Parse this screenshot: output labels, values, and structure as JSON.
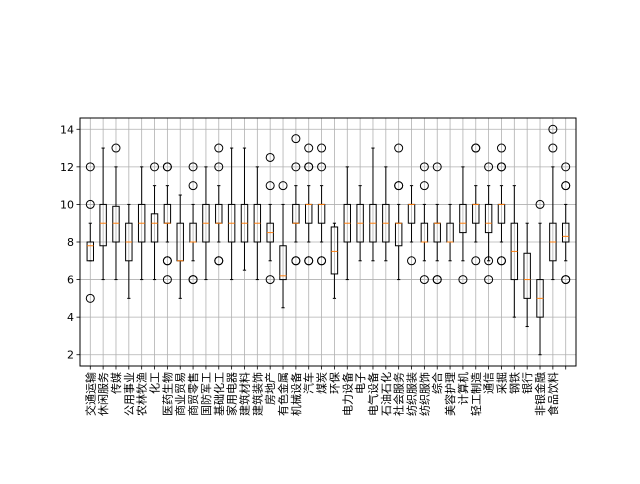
{
  "chart_data": {
    "type": "box",
    "title": "",
    "xlabel": "",
    "ylabel": "",
    "ylim": [
      1.4,
      14.6
    ],
    "yticks": [
      2,
      4,
      6,
      8,
      10,
      12,
      14
    ],
    "grid": true,
    "colors": {
      "box": "#000000",
      "median": "#ff7f0e",
      "grid": "#b0b0b0",
      "background": "#ffffff"
    },
    "boxes": [
      {
        "label": "交通运输",
        "whislo": 7,
        "q1": 7,
        "med": 7.8,
        "q3": 8,
        "whishi": 9,
        "fliers": [
          5,
          10,
          12
        ]
      },
      {
        "label": "休闲服务",
        "whislo": 6,
        "q1": 7.8,
        "med": 9,
        "q3": 10,
        "whishi": 13,
        "fliers": []
      },
      {
        "label": "传媒",
        "whislo": 6,
        "q1": 8,
        "med": 9,
        "q3": 9.9,
        "whishi": 12,
        "fliers": [
          13
        ]
      },
      {
        "label": "公用事业",
        "whislo": 5,
        "q1": 7,
        "med": 8,
        "q3": 9,
        "whishi": 10,
        "fliers": []
      },
      {
        "label": "农林牧渔",
        "whislo": 6,
        "q1": 8,
        "med": 9,
        "q3": 10,
        "whishi": 12,
        "fliers": []
      },
      {
        "label": "化工",
        "whislo": 6,
        "q1": 8,
        "med": 9,
        "q3": 9.5,
        "whishi": 11,
        "fliers": [
          12
        ]
      },
      {
        "label": "医药生物",
        "whislo": 8,
        "q1": 9,
        "med": 9,
        "q3": 10,
        "whishi": 11,
        "fliers": [
          6,
          7,
          7,
          12,
          12
        ]
      },
      {
        "label": "商业贸易",
        "whislo": 5,
        "q1": 7,
        "med": 7,
        "q3": 9,
        "whishi": 10.5,
        "fliers": []
      },
      {
        "label": "商贸零售",
        "whislo": 7,
        "q1": 8,
        "med": 8,
        "q3": 9,
        "whishi": 10,
        "fliers": [
          6,
          6,
          11,
          12
        ]
      },
      {
        "label": "国防军工",
        "whislo": 6,
        "q1": 8,
        "med": 9,
        "q3": 10,
        "whishi": 12,
        "fliers": []
      },
      {
        "label": "基础化工",
        "whislo": 8,
        "q1": 9,
        "med": 9,
        "q3": 10,
        "whishi": 11,
        "fliers": [
          7,
          7,
          12,
          13
        ]
      },
      {
        "label": "家用电器",
        "whislo": 6,
        "q1": 8,
        "med": 9,
        "q3": 10,
        "whishi": 13,
        "fliers": []
      },
      {
        "label": "建筑材料",
        "whislo": 6.5,
        "q1": 8,
        "med": 9,
        "q3": 10,
        "whishi": 13,
        "fliers": []
      },
      {
        "label": "建筑装饰",
        "whislo": 6,
        "q1": 8,
        "med": 9,
        "q3": 10,
        "whishi": 12,
        "fliers": []
      },
      {
        "label": "房地产",
        "whislo": 7,
        "q1": 8,
        "med": 8.5,
        "q3": 9,
        "whishi": 10,
        "fliers": [
          6,
          11,
          12.5
        ]
      },
      {
        "label": "有色金属",
        "whislo": 4.5,
        "q1": 6,
        "med": 6.2,
        "q3": 7.8,
        "whishi": 10,
        "fliers": [
          11
        ]
      },
      {
        "label": "机械设备",
        "whislo": 8,
        "q1": 9,
        "med": 9,
        "q3": 10,
        "whishi": 11,
        "fliers": [
          7,
          7,
          12,
          13.5
        ]
      },
      {
        "label": "汽车",
        "whislo": 8,
        "q1": 9,
        "med": 10,
        "q3": 10,
        "whishi": 11,
        "fliers": [
          7,
          7,
          12,
          12,
          13
        ]
      },
      {
        "label": "煤炭",
        "whislo": 8,
        "q1": 9,
        "med": 10,
        "q3": 10,
        "whishi": 11,
        "fliers": [
          7,
          7,
          12,
          13
        ]
      },
      {
        "label": "环保",
        "whislo": 5,
        "q1": 6.3,
        "med": 7.5,
        "q3": 8.8,
        "whishi": 9,
        "fliers": []
      },
      {
        "label": "电力设备",
        "whislo": 6,
        "q1": 8,
        "med": 9,
        "q3": 10,
        "whishi": 12,
        "fliers": []
      },
      {
        "label": "电子",
        "whislo": 7,
        "q1": 8,
        "med": 9,
        "q3": 10,
        "whishi": 11,
        "fliers": []
      },
      {
        "label": "电气设备",
        "whislo": 7,
        "q1": 8,
        "med": 9,
        "q3": 10,
        "whishi": 13,
        "fliers": []
      },
      {
        "label": "石油石化",
        "whislo": 7,
        "q1": 8,
        "med": 9,
        "q3": 10,
        "whishi": 12,
        "fliers": []
      },
      {
        "label": "社会服务",
        "whislo": 6,
        "q1": 7.8,
        "med": 9,
        "q3": 9,
        "whishi": 10,
        "fliers": [
          11,
          11,
          13
        ]
      },
      {
        "label": "纺织服装",
        "whislo": 8,
        "q1": 9,
        "med": 10,
        "q3": 10,
        "whishi": 11,
        "fliers": [
          7
        ]
      },
      {
        "label": "纺织服饰",
        "whislo": 7,
        "q1": 8,
        "med": 8,
        "q3": 9,
        "whishi": 10,
        "fliers": [
          6,
          11,
          12
        ]
      },
      {
        "label": "综合",
        "whislo": 7,
        "q1": 8,
        "med": 9,
        "q3": 9,
        "whishi": 10,
        "fliers": [
          6,
          6,
          12
        ]
      },
      {
        "label": "美容护理",
        "whislo": 7,
        "q1": 8,
        "med": 8,
        "q3": 9,
        "whishi": 10,
        "fliers": []
      },
      {
        "label": "计算机",
        "whislo": 7,
        "q1": 8.5,
        "med": 9,
        "q3": 10,
        "whishi": 12,
        "fliers": [
          6
        ]
      },
      {
        "label": "轻工制造",
        "whislo": 8,
        "q1": 9,
        "med": 10,
        "q3": 10,
        "whishi": 11,
        "fliers": [
          7,
          13,
          13
        ]
      },
      {
        "label": "通信",
        "whislo": 7,
        "q1": 8.5,
        "med": 9,
        "q3": 10,
        "whishi": 11,
        "fliers": [
          6,
          7,
          12
        ]
      },
      {
        "label": "采掘",
        "whislo": 8,
        "q1": 9,
        "med": 10,
        "q3": 10,
        "whishi": 11,
        "fliers": [
          7,
          7,
          12,
          12,
          13
        ]
      },
      {
        "label": "钢铁",
        "whislo": 4,
        "q1": 6,
        "med": 7.5,
        "q3": 9,
        "whishi": 11,
        "fliers": []
      },
      {
        "label": "银行",
        "whislo": 3.5,
        "q1": 5,
        "med": 6,
        "q3": 7.4,
        "whishi": 9,
        "fliers": []
      },
      {
        "label": "非银金融",
        "whislo": 2,
        "q1": 4,
        "med": 5,
        "q3": 6,
        "whishi": 9,
        "fliers": [
          10
        ]
      },
      {
        "label": "食品饮料",
        "whislo": 6,
        "q1": 7,
        "med": 8,
        "q3": 9,
        "whishi": 12,
        "fliers": [
          13,
          14
        ]
      },
      {
        "label": "",
        "whislo": 7,
        "q1": 8,
        "med": 8.3,
        "q3": 9,
        "whishi": 10,
        "fliers": [
          6,
          6,
          11,
          11,
          12
        ]
      }
    ]
  }
}
